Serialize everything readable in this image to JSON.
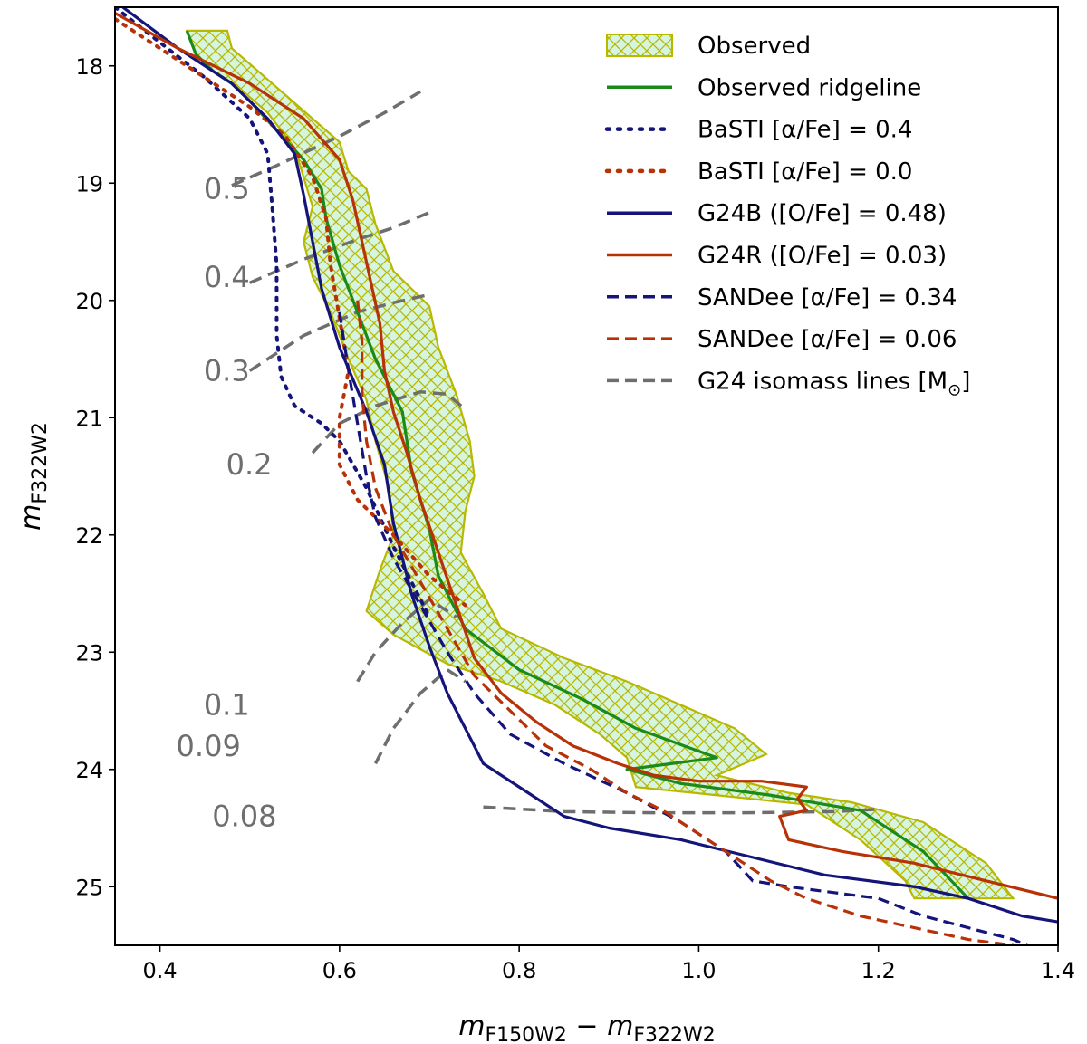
{
  "chart_data": {
    "type": "line",
    "title": "",
    "xlabel": "m_F150W2 - m_F322W2",
    "xlabel_main": "m",
    "xlabel_sub1": "F150W2",
    "xlabel_op": " − ",
    "xlabel_sub2": "F322W2",
    "ylabel": "m_F322W2",
    "ylabel_main": "m",
    "ylabel_sub": "F322W2",
    "xlim": [
      0.35,
      1.4
    ],
    "ylim": [
      25.5,
      17.5
    ],
    "y_inverted": true,
    "xticks": [
      0.4,
      0.6,
      0.8,
      1.0,
      1.2,
      1.4
    ],
    "xtick_labels": [
      "0.4",
      "0.6",
      "0.8",
      "1.0",
      "1.2",
      "1.4"
    ],
    "yticks": [
      18,
      19,
      20,
      21,
      22,
      23,
      24,
      25
    ],
    "ytick_labels": [
      "18",
      "19",
      "20",
      "21",
      "22",
      "23",
      "24",
      "25"
    ],
    "grid": false,
    "legend_position": "top-right",
    "colors": {
      "observed_fill": "#d6f5e0",
      "observed_edge": "#b8b800",
      "ridgeline": "#1a8a1a",
      "blue": "#14147a",
      "red": "#b83208",
      "iso": "#6e6e6e"
    },
    "legend": [
      {
        "label": "Observed",
        "style": "patch",
        "color": "observed_edge"
      },
      {
        "label": "Observed ridgeline",
        "style": "solid",
        "color": "ridgeline"
      },
      {
        "label": "BaSTI [α/Fe] = 0.4",
        "style": "dotted",
        "color": "blue"
      },
      {
        "label": "BaSTI [α/Fe] = 0.0",
        "style": "dotted",
        "color": "red"
      },
      {
        "label": "G24B ([O/Fe] = 0.48)",
        "style": "solid",
        "color": "blue"
      },
      {
        "label": "G24R ([O/Fe] = 0.03)",
        "style": "solid",
        "color": "red"
      },
      {
        "label": "SANDee [α/Fe] = 0.34",
        "style": "dashed",
        "color": "blue"
      },
      {
        "label": "SANDee [α/Fe] = 0.06",
        "style": "dashed",
        "color": "red"
      },
      {
        "label": "G24 isomass lines [M",
        "label_sub": "⊙",
        "label_end": "]",
        "style": "dashed",
        "color": "iso"
      }
    ],
    "observed_region": {
      "left": [
        [
          0.43,
          17.7
        ],
        [
          0.44,
          17.9
        ],
        [
          0.46,
          18.05
        ],
        [
          0.49,
          18.2
        ],
        [
          0.52,
          18.4
        ],
        [
          0.55,
          18.7
        ],
        [
          0.56,
          18.95
        ],
        [
          0.57,
          19.2
        ],
        [
          0.56,
          19.5
        ],
        [
          0.57,
          19.8
        ],
        [
          0.59,
          20.1
        ],
        [
          0.61,
          20.5
        ],
        [
          0.63,
          20.85
        ],
        [
          0.64,
          21.2
        ],
        [
          0.655,
          21.6
        ],
        [
          0.66,
          22.0
        ],
        [
          0.645,
          22.3
        ],
        [
          0.63,
          22.65
        ],
        [
          0.66,
          22.85
        ],
        [
          0.72,
          23.1
        ],
        [
          0.78,
          23.25
        ],
        [
          0.84,
          23.45
        ],
        [
          0.89,
          23.7
        ],
        [
          0.92,
          23.9
        ],
        [
          0.93,
          24.15
        ],
        [
          1.02,
          24.22
        ],
        [
          1.12,
          24.3
        ],
        [
          1.18,
          24.6
        ],
        [
          1.23,
          24.95
        ],
        [
          1.24,
          25.1
        ]
      ],
      "right": [
        [
          0.475,
          17.7
        ],
        [
          0.48,
          17.85
        ],
        [
          0.51,
          18.05
        ],
        [
          0.54,
          18.25
        ],
        [
          0.57,
          18.45
        ],
        [
          0.6,
          18.65
        ],
        [
          0.61,
          18.9
        ],
        [
          0.63,
          19.05
        ],
        [
          0.64,
          19.35
        ],
        [
          0.66,
          19.75
        ],
        [
          0.7,
          20.05
        ],
        [
          0.71,
          20.4
        ],
        [
          0.73,
          20.8
        ],
        [
          0.745,
          21.2
        ],
        [
          0.75,
          21.5
        ],
        [
          0.74,
          21.8
        ],
        [
          0.735,
          22.15
        ],
        [
          0.76,
          22.5
        ],
        [
          0.78,
          22.8
        ],
        [
          0.85,
          23.05
        ],
        [
          0.92,
          23.25
        ],
        [
          0.98,
          23.45
        ],
        [
          1.04,
          23.65
        ],
        [
          1.075,
          23.87
        ],
        [
          1.06,
          23.92
        ],
        [
          1.02,
          24.05
        ],
        [
          1.1,
          24.2
        ],
        [
          1.17,
          24.28
        ],
        [
          1.25,
          24.45
        ],
        [
          1.32,
          24.8
        ],
        [
          1.35,
          25.1
        ]
      ]
    },
    "series": [
      {
        "name": "Observed ridgeline",
        "color": "ridgeline",
        "dash": "solid",
        "x": [
          0.43,
          0.44,
          0.46,
          0.48,
          0.5,
          0.53,
          0.56,
          0.58,
          0.585,
          0.6,
          0.62,
          0.64,
          0.67,
          0.68,
          0.7,
          0.71,
          0.74,
          0.8,
          0.87,
          0.93,
          1.02,
          0.92,
          0.98,
          1.08,
          1.18,
          1.25,
          1.3
        ],
        "y": [
          17.7,
          17.9,
          18.05,
          18.15,
          18.3,
          18.55,
          18.8,
          19.05,
          19.3,
          19.7,
          20.1,
          20.5,
          20.95,
          21.45,
          21.95,
          22.35,
          22.8,
          23.15,
          23.4,
          23.65,
          23.9,
          24.0,
          24.12,
          24.22,
          24.35,
          24.7,
          25.1
        ]
      },
      {
        "name": "BaSTI [α/Fe] = 0.4",
        "color": "blue",
        "dash": "dotted",
        "x": [
          0.35,
          0.4,
          0.45,
          0.5,
          0.52,
          0.525,
          0.53,
          0.53,
          0.535,
          0.55,
          0.58,
          0.6,
          0.63,
          0.66,
          0.7
        ],
        "y": [
          17.5,
          17.8,
          18.1,
          18.45,
          18.75,
          19.2,
          19.7,
          20.3,
          20.65,
          20.9,
          21.05,
          21.2,
          21.6,
          22.1,
          22.7
        ]
      },
      {
        "name": "BaSTI [α/Fe] = 0.0",
        "color": "red",
        "dash": "dotted",
        "x": [
          0.35,
          0.4,
          0.45,
          0.5,
          0.54,
          0.57,
          0.585,
          0.59,
          0.6,
          0.61,
          0.6,
          0.6,
          0.62,
          0.66,
          0.7,
          0.74
        ],
        "y": [
          17.6,
          17.85,
          18.1,
          18.35,
          18.6,
          18.95,
          19.3,
          19.7,
          20.15,
          20.6,
          21.0,
          21.4,
          21.7,
          22.0,
          22.35,
          22.6
        ]
      },
      {
        "name": "G24B ([O/Fe] = 0.48)",
        "color": "blue",
        "dash": "solid",
        "x": [
          0.35,
          0.42,
          0.48,
          0.52,
          0.55,
          0.56,
          0.57,
          0.58,
          0.6,
          0.63,
          0.65,
          0.66,
          0.68,
          0.7,
          0.72,
          0.74,
          0.76,
          0.82,
          0.85,
          0.9,
          0.98,
          1.06,
          1.14,
          1.24,
          1.3,
          1.36,
          1.4
        ],
        "y": [
          17.45,
          17.85,
          18.15,
          18.45,
          18.75,
          19.1,
          19.5,
          19.9,
          20.4,
          20.95,
          21.4,
          21.9,
          22.5,
          22.95,
          23.35,
          23.65,
          23.95,
          24.25,
          24.4,
          24.5,
          24.6,
          24.75,
          24.9,
          25.0,
          25.1,
          25.25,
          25.3
        ]
      },
      {
        "name": "G24R ([O/Fe] = 0.03)",
        "color": "red",
        "dash": "solid",
        "x": [
          0.35,
          0.42,
          0.5,
          0.56,
          0.6,
          0.615,
          0.625,
          0.635,
          0.645,
          0.65,
          0.66,
          0.675,
          0.69,
          0.71,
          0.73,
          0.75,
          0.78,
          0.82,
          0.86,
          0.91,
          0.95,
          1.0,
          1.07,
          1.12,
          1.11,
          1.12,
          1.09,
          1.1,
          1.16,
          1.24,
          1.32,
          1.4
        ],
        "y": [
          17.55,
          17.85,
          18.15,
          18.45,
          18.8,
          19.15,
          19.5,
          19.85,
          20.2,
          20.6,
          20.95,
          21.3,
          21.7,
          22.15,
          22.6,
          23.05,
          23.35,
          23.6,
          23.8,
          23.95,
          24.05,
          24.1,
          24.1,
          24.15,
          24.25,
          24.35,
          24.4,
          24.6,
          24.7,
          24.8,
          24.95,
          25.1
        ]
      },
      {
        "name": "SANDee [α/Fe] = 0.34",
        "color": "blue",
        "dash": "dashed",
        "x": [
          0.6,
          0.61,
          0.62,
          0.63,
          0.64,
          0.66,
          0.69,
          0.72,
          0.75,
          0.79,
          0.85,
          0.92,
          0.98,
          1.03,
          1.06,
          1.1,
          1.15,
          1.2,
          1.25,
          1.3,
          1.35,
          1.38
        ],
        "y": [
          20.1,
          20.6,
          21.05,
          21.5,
          21.85,
          22.2,
          22.6,
          23.0,
          23.35,
          23.7,
          23.95,
          24.2,
          24.45,
          24.7,
          24.95,
          25.0,
          25.05,
          25.1,
          25.25,
          25.35,
          25.45,
          25.55
        ]
      },
      {
        "name": "SANDee [α/Fe] = 0.06",
        "color": "red",
        "dash": "dashed",
        "x": [
          0.62,
          0.625,
          0.625,
          0.63,
          0.64,
          0.66,
          0.69,
          0.72,
          0.75,
          0.79,
          0.83,
          0.88,
          0.92,
          0.96,
          1.0,
          1.04,
          1.08,
          1.12,
          1.18,
          1.24,
          1.3,
          1.35
        ],
        "y": [
          20.0,
          20.35,
          20.8,
          21.2,
          21.6,
          22.0,
          22.4,
          22.8,
          23.2,
          23.5,
          23.8,
          24.0,
          24.2,
          24.35,
          24.55,
          24.75,
          24.95,
          25.1,
          25.25,
          25.35,
          25.45,
          25.5
        ]
      }
    ],
    "isomass_lines": [
      {
        "mass": "0.5",
        "x": [
          0.48,
          0.53,
          0.6,
          0.65,
          0.69
        ],
        "y": [
          19.02,
          18.85,
          18.6,
          18.4,
          18.22
        ],
        "label_at": [
          0.5,
          19.05
        ]
      },
      {
        "mass": "0.4",
        "x": [
          0.5,
          0.56,
          0.62,
          0.66,
          0.7
        ],
        "y": [
          19.85,
          19.65,
          19.48,
          19.38,
          19.25
        ],
        "label_at": [
          0.5,
          19.8
        ]
      },
      {
        "name": "0.3",
        "mass": "0.3",
        "x": [
          0.5,
          0.56,
          0.62,
          0.66,
          0.7
        ],
        "y": [
          20.6,
          20.3,
          20.1,
          20.02,
          19.95
        ],
        "label_at": [
          0.5,
          20.6
        ]
      },
      {
        "mass": "0.2",
        "x": [
          0.57,
          0.6,
          0.64,
          0.69,
          0.72,
          0.74
        ],
        "y": [
          21.3,
          21.05,
          20.9,
          20.78,
          20.8,
          20.93
        ],
        "label_at": [
          0.525,
          21.4
        ]
      },
      {
        "mass": "0.1",
        "x": [
          0.62,
          0.64,
          0.67,
          0.7,
          0.73
        ],
        "y": [
          23.25,
          23.0,
          22.75,
          22.55,
          22.7
        ],
        "label_at": [
          0.5,
          23.45
        ]
      },
      {
        "mass": "0.09",
        "x": [
          0.64,
          0.66,
          0.69,
          0.72,
          0.74
        ],
        "y": [
          23.95,
          23.65,
          23.35,
          23.15,
          23.25
        ],
        "label_at": [
          0.49,
          23.8
        ]
      },
      {
        "mass": "0.08",
        "x": [
          0.76,
          0.85,
          0.95,
          1.05,
          1.15,
          1.2
        ],
        "y": [
          24.32,
          24.36,
          24.37,
          24.37,
          24.36,
          24.34
        ],
        "label_at": [
          0.53,
          24.4
        ]
      }
    ]
  }
}
